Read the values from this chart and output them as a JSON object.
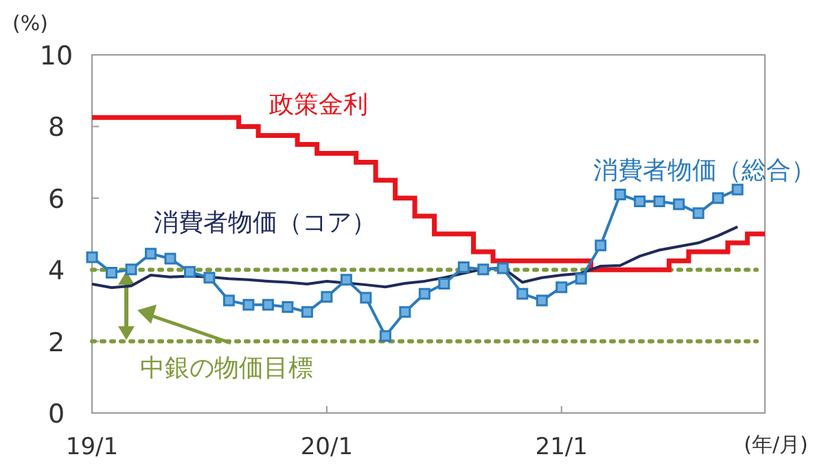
{
  "chart_data": {
    "type": "line",
    "xlabel": "(年/月)",
    "ylabel": "(%)",
    "categories": [
      "19/1",
      null,
      null,
      null,
      null,
      null,
      null,
      null,
      null,
      null,
      null,
      null,
      "20/1",
      null,
      null,
      null,
      null,
      null,
      null,
      null,
      null,
      null,
      null,
      null,
      "21/1",
      null,
      null,
      null,
      null,
      null,
      null,
      null,
      null,
      null,
      null
    ],
    "ylim": [
      0,
      10
    ],
    "yticks": [
      0,
      2,
      4,
      6,
      8,
      10
    ],
    "grid": false,
    "ref_lines": [
      {
        "axis": "y",
        "value": 4,
        "label": null,
        "color": "#7f9a3c",
        "line_style": "dotted"
      },
      {
        "axis": "y",
        "value": 2,
        "label": "中銀の物価目標",
        "color": "#7f9a3c",
        "line_style": "dotted"
      }
    ],
    "series": [
      {
        "name": "政策金利",
        "type": "step",
        "color": "#e8141b",
        "values": [
          8.25,
          8.25,
          8.25,
          8.25,
          8.25,
          8.25,
          8.25,
          8.25,
          8.0,
          7.75,
          7.75,
          7.5,
          7.25,
          7.25,
          7.0,
          6.5,
          6.0,
          5.5,
          5.0,
          5.0,
          4.5,
          4.25,
          4.25,
          4.25,
          4.25,
          4.25,
          4.0,
          4.0,
          4.0,
          4.0,
          4.25,
          4.5,
          4.5,
          4.75,
          5.0
        ]
      },
      {
        "name": "消費者物価（コア）",
        "type": "line",
        "marker": "none",
        "color": "#1f2a5a",
        "values": [
          3.6,
          3.5,
          3.55,
          3.85,
          3.8,
          3.82,
          3.8,
          3.75,
          3.72,
          3.68,
          3.65,
          3.6,
          3.68,
          3.63,
          3.58,
          3.52,
          3.62,
          3.68,
          3.78,
          3.9,
          4.02,
          4.05,
          3.65,
          3.78,
          3.85,
          3.9,
          4.1,
          4.12,
          4.38,
          4.55,
          4.65,
          4.75,
          4.95,
          5.2,
          null
        ]
      },
      {
        "name": "消費者物価（総合）",
        "type": "line",
        "marker": "square",
        "color": "#2b7bbd",
        "values": [
          4.35,
          3.92,
          4.01,
          4.45,
          4.31,
          3.94,
          3.78,
          3.14,
          3.02,
          3.02,
          2.96,
          2.82,
          3.24,
          3.72,
          3.22,
          2.15,
          2.82,
          3.33,
          3.61,
          4.07,
          4.01,
          4.04,
          3.33,
          3.14,
          3.51,
          3.75,
          4.68,
          6.1,
          5.91,
          5.91,
          5.83,
          5.58,
          6.0,
          6.24,
          null
        ]
      }
    ]
  }
}
